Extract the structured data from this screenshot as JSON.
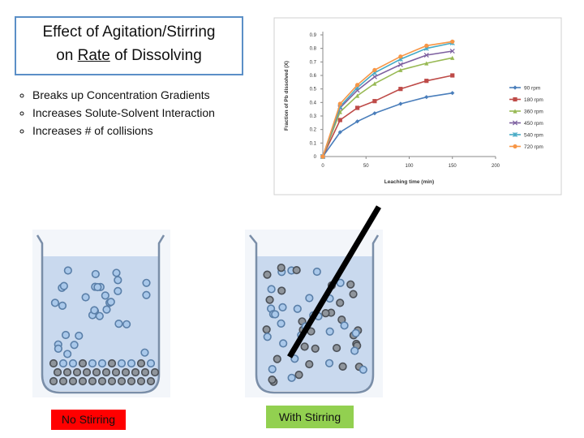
{
  "header": {
    "line1": "Effect of Agitation/Stirring",
    "line2_before": "on",
    "emphasis": "Rate",
    "line2_after": "of Dissolving"
  },
  "bullets": [
    "Breaks up Concentration Gradients",
    "Increases Solute-Solvent Interaction",
    "Increases # of collisions"
  ],
  "labels": {
    "left": "No Stirring",
    "right": "With Stirring"
  },
  "chart_data": {
    "type": "line",
    "x_label": "Leaching time (min)",
    "y_label": "Fraction of Pb dissolved (X)",
    "x": [
      0,
      20,
      40,
      60,
      90,
      120,
      150
    ],
    "xlim": [
      0,
      200
    ],
    "xticks": [
      0,
      50,
      100,
      150,
      200
    ],
    "ylim": [
      0,
      0.9
    ],
    "yticks": [
      0,
      0.1,
      0.2,
      0.3,
      0.4,
      0.5,
      0.6,
      0.7,
      0.8,
      0.9
    ],
    "legend": "right",
    "series": [
      {
        "name": "90 rpm",
        "color": "#4a7ebb",
        "marker": "diamond",
        "values": [
          0,
          0.18,
          0.26,
          0.32,
          0.39,
          0.44,
          0.47
        ]
      },
      {
        "name": "180 rpm",
        "color": "#be4b48",
        "marker": "square",
        "values": [
          0,
          0.27,
          0.36,
          0.41,
          0.5,
          0.56,
          0.6
        ]
      },
      {
        "name": "360 rpm",
        "color": "#98b954",
        "marker": "triangle",
        "values": [
          0,
          0.33,
          0.45,
          0.54,
          0.64,
          0.69,
          0.73
        ]
      },
      {
        "name": "450 rpm",
        "color": "#7d60a0",
        "marker": "x",
        "values": [
          0,
          0.36,
          0.49,
          0.59,
          0.68,
          0.75,
          0.78
        ]
      },
      {
        "name": "540 rpm",
        "color": "#46aac5",
        "marker": "star",
        "values": [
          0,
          0.37,
          0.51,
          0.62,
          0.72,
          0.8,
          0.84
        ]
      },
      {
        "name": "720 rpm",
        "color": "#f79646",
        "marker": "circle",
        "values": [
          0,
          0.39,
          0.53,
          0.64,
          0.74,
          0.82,
          0.85
        ]
      }
    ]
  }
}
